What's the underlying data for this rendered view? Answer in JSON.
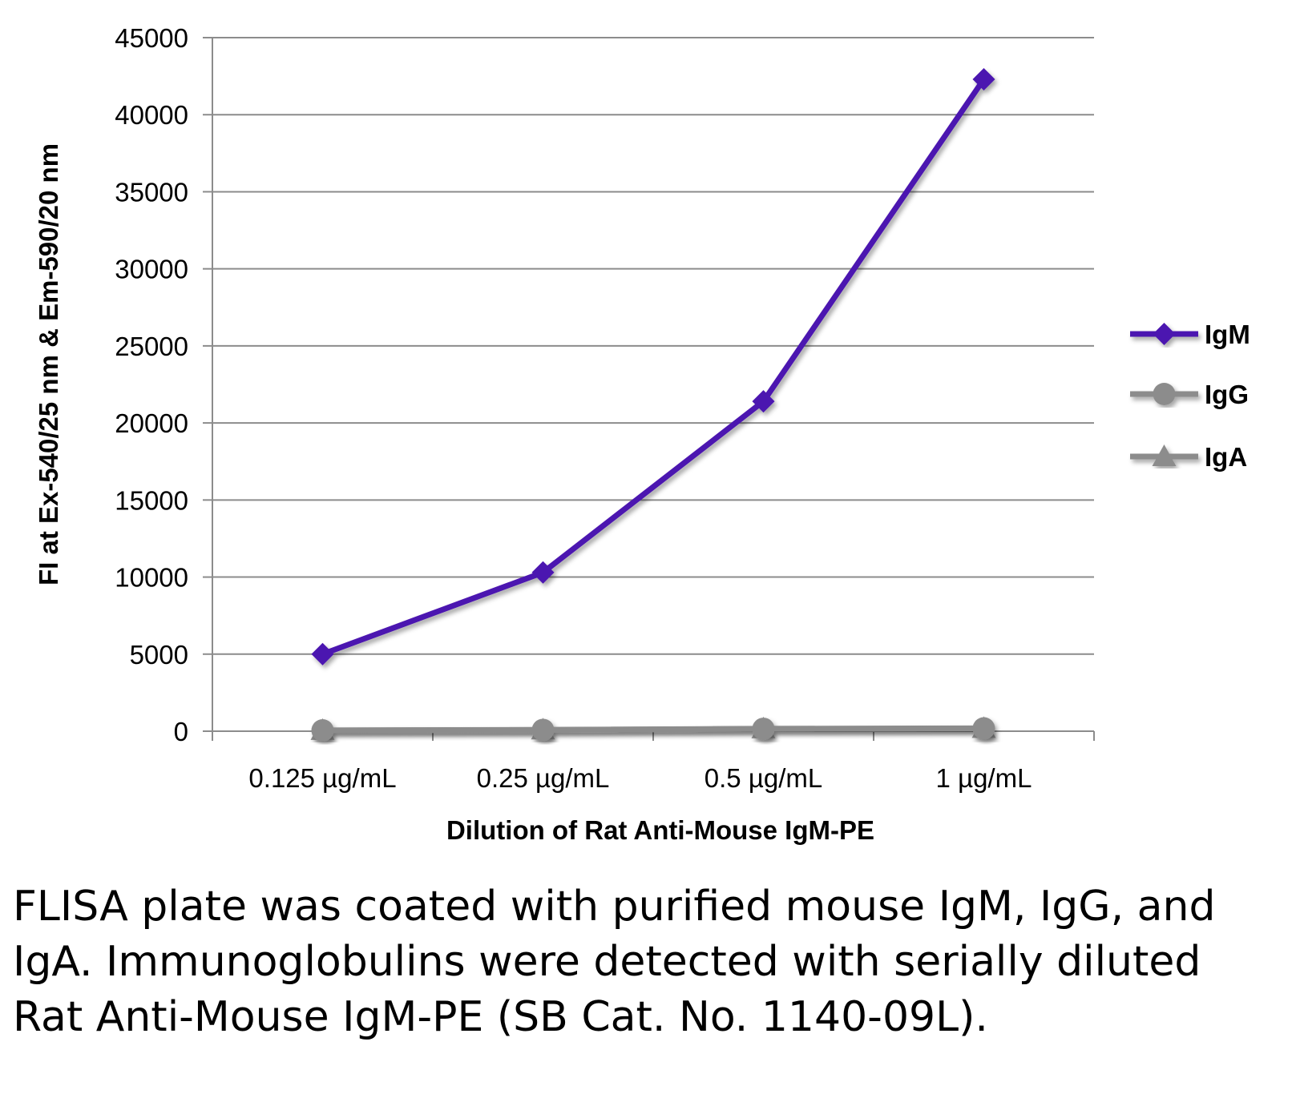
{
  "chart_data": {
    "type": "line",
    "categories": [
      "0.125 µg/mL",
      "0.25 µg/mL",
      "0.5 µg/mL",
      "1 µg/mL"
    ],
    "series": [
      {
        "name": "IgM",
        "values": [
          5000,
          10300,
          21400,
          42300
        ],
        "color": "#4b12b0",
        "marker": "diamond"
      },
      {
        "name": "IgG",
        "values": [
          50,
          80,
          150,
          180
        ],
        "color": "#8c8c8c",
        "marker": "circle"
      },
      {
        "name": "IgA",
        "values": [
          60,
          90,
          160,
          190
        ],
        "color": "#8c8c8c",
        "marker": "triangle"
      }
    ],
    "xlabel": "Dilution of Rat Anti-Mouse IgM-PE",
    "ylabel": "FI at Ex-540/25 nm & Em-590/20 nm",
    "ylim": [
      0,
      45000
    ],
    "yticks": [
      0,
      5000,
      10000,
      15000,
      20000,
      25000,
      30000,
      35000,
      40000,
      45000
    ],
    "grid": true,
    "legend": "right"
  },
  "caption": "FLISA plate was coated with purified mouse IgM, IgG, and IgA.  Immunoglobulins were detected with serially diluted Rat Anti-Mouse IgM-PE (SB Cat. No. 1140-09L)."
}
